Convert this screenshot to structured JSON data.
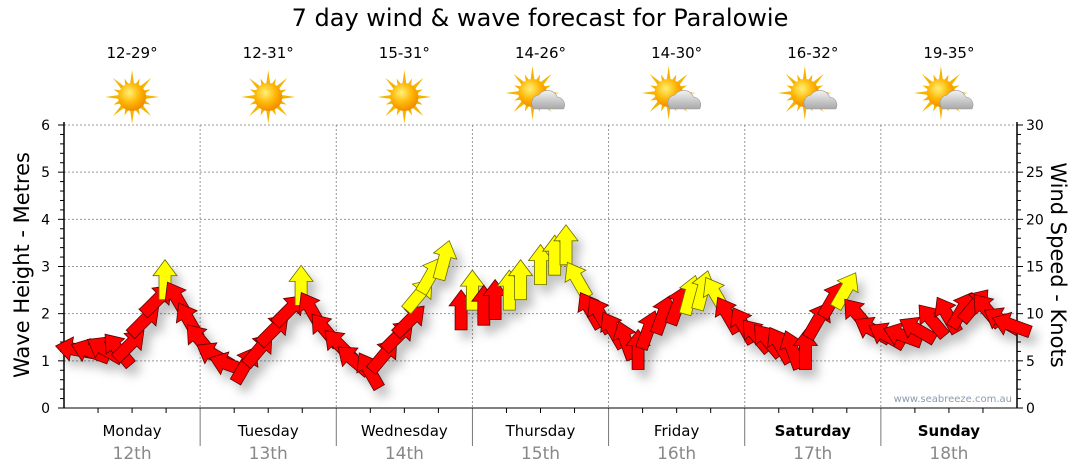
{
  "chart_data": {
    "type": "scatter",
    "title": "7 day wind & wave forecast for Paralowie",
    "ylabel": "Wave Height - Metres",
    "y2label": "Wind Speed - Knots",
    "ylim": [
      0,
      6
    ],
    "y2lim": [
      0,
      30
    ],
    "yticks": [
      "0",
      "1",
      "2",
      "3",
      "4",
      "5",
      "6"
    ],
    "y2ticks": [
      "0",
      "5",
      "10",
      "15",
      "20",
      "25",
      "30"
    ],
    "grid": true,
    "watermark": "www.seabreeze.com.au",
    "colors": {
      "light": "#ff0000",
      "strong": "#ffff00",
      "strong_threshold_knots": 12
    },
    "days": [
      {
        "name": "Monday",
        "date": "12th",
        "temp": "12-29°",
        "icon": "sun-icon",
        "bold": false
      },
      {
        "name": "Tuesday",
        "date": "13th",
        "temp": "12-31°",
        "icon": "sun-icon",
        "bold": false
      },
      {
        "name": "Wednesday",
        "date": "14th",
        "temp": "15-31°",
        "icon": "sun-icon",
        "bold": false
      },
      {
        "name": "Thursday",
        "date": "15th",
        "temp": "14-26°",
        "icon": "partly-cloudy-icon",
        "bold": false
      },
      {
        "name": "Friday",
        "date": "16th",
        "temp": "14-30°",
        "icon": "partly-cloudy-icon",
        "bold": false
      },
      {
        "name": "Saturday",
        "date": "17th",
        "temp": "16-32°",
        "icon": "partly-cloudy-icon",
        "bold": true
      },
      {
        "name": "Sunday",
        "date": "18th",
        "temp": "19-35°",
        "icon": "partly-cloudy-icon",
        "bold": true
      }
    ],
    "wind_series_fields": [
      "hour",
      "knots",
      "direction_deg"
    ],
    "wind": [
      [
        2,
        6.2,
        280
      ],
      [
        4.6,
        6,
        290
      ],
      [
        7.2,
        6.2,
        300
      ],
      [
        9.5,
        6.2,
        320
      ],
      [
        11.6,
        6.7,
        45
      ],
      [
        14.2,
        9.3,
        45
      ],
      [
        16.5,
        11.5,
        45
      ],
      [
        17.8,
        13.6,
        0
      ],
      [
        20,
        11.5,
        330
      ],
      [
        22,
        9.3,
        330
      ],
      [
        24,
        7.2,
        320
      ],
      [
        26.5,
        5.6,
        300
      ],
      [
        29,
        4.6,
        290
      ],
      [
        32,
        4.6,
        30
      ],
      [
        34.4,
        6.2,
        40
      ],
      [
        37,
        8.3,
        45
      ],
      [
        39.7,
        10.4,
        45
      ],
      [
        41.8,
        13,
        0
      ],
      [
        43.6,
        10.4,
        330
      ],
      [
        46,
        8.3,
        320
      ],
      [
        48.5,
        6.7,
        315
      ],
      [
        51,
        5.1,
        310
      ],
      [
        53.8,
        4,
        330
      ],
      [
        56.4,
        5.6,
        40
      ],
      [
        59,
        7.7,
        45
      ],
      [
        61,
        9.3,
        45
      ],
      [
        62.6,
        12,
        40
      ],
      [
        64.7,
        14.1,
        30
      ],
      [
        67,
        15.7,
        15
      ],
      [
        70,
        10.4,
        0
      ],
      [
        72,
        12.5,
        0
      ],
      [
        74,
        10.9,
        0
      ],
      [
        76,
        11.5,
        0
      ],
      [
        78.5,
        12.5,
        0
      ],
      [
        80.5,
        13.6,
        0
      ],
      [
        84,
        15.2,
        0
      ],
      [
        86.5,
        16.2,
        0
      ],
      [
        88.5,
        17.3,
        0
      ],
      [
        90.5,
        13.6,
        330
      ],
      [
        92.8,
        10.4,
        330
      ],
      [
        94.5,
        9.9,
        330
      ],
      [
        96.8,
        8.3,
        330
      ],
      [
        99,
        7.2,
        340
      ],
      [
        101.2,
        6.2,
        0
      ],
      [
        103,
        8.3,
        20
      ],
      [
        105.6,
        9.9,
        20
      ],
      [
        108.2,
        10.9,
        20
      ],
      [
        110.4,
        12,
        15
      ],
      [
        112.6,
        12.5,
        15
      ],
      [
        114.9,
        12,
        330
      ],
      [
        117,
        9.9,
        330
      ],
      [
        119.7,
        8.8,
        330
      ],
      [
        122,
        7.7,
        320
      ],
      [
        124,
        7.2,
        320
      ],
      [
        126.2,
        6.7,
        330
      ],
      [
        128.4,
        6.2,
        340
      ],
      [
        130.7,
        6.2,
        0
      ],
      [
        132.9,
        9.3,
        30
      ],
      [
        135.5,
        11.5,
        30
      ],
      [
        137.8,
        12.5,
        30
      ],
      [
        139.9,
        9.9,
        320
      ],
      [
        142.5,
        8.3,
        300
      ],
      [
        145,
        7.7,
        300
      ],
      [
        147.8,
        7.7,
        290
      ],
      [
        150.4,
        8.3,
        300
      ],
      [
        153,
        9.3,
        320
      ],
      [
        155.7,
        9.9,
        330
      ],
      [
        158.3,
        10.4,
        30
      ],
      [
        160.6,
        10.9,
        40
      ],
      [
        162.7,
        10.4,
        320
      ],
      [
        165.3,
        9.3,
        300
      ],
      [
        167,
        8.8,
        290
      ]
    ]
  }
}
